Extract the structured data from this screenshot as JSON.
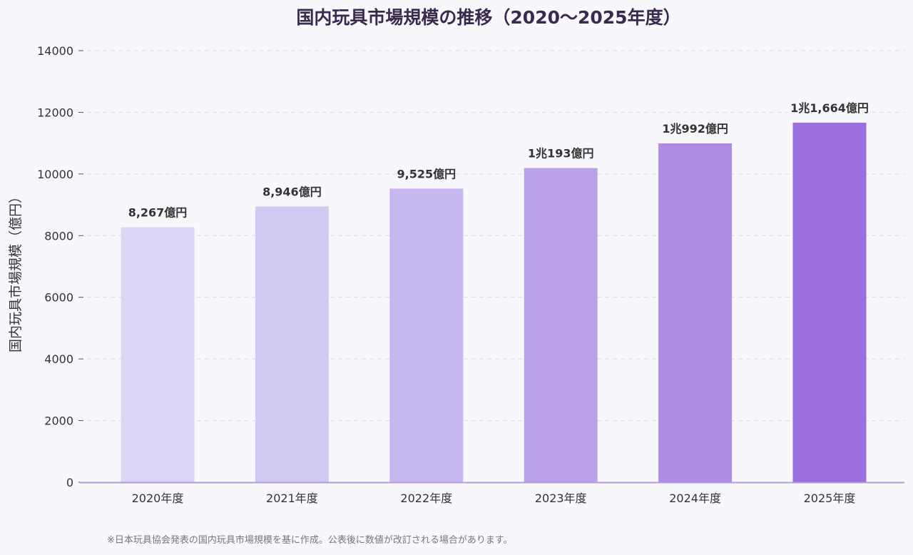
{
  "chart_data": {
    "type": "bar",
    "title": "国内玩具市場規模の推移（2020〜2025年度）",
    "xlabel": "",
    "ylabel": "国内玩具市場規模（億円）",
    "categories": [
      "2020年度",
      "2021年度",
      "2022年度",
      "2023年度",
      "2024年度",
      "2025年度"
    ],
    "values": [
      8267,
      8946,
      9525,
      10193,
      10992,
      11664
    ],
    "data_labels": [
      "8,267億円",
      "8,946億円",
      "9,525億円",
      "1兆193億円",
      "1兆992億円",
      "1兆1,664億円"
    ],
    "ylim": [
      0,
      14000
    ],
    "yticks": [
      0,
      2000,
      4000,
      6000,
      8000,
      10000,
      12000,
      14000
    ],
    "grid": true,
    "colors": [
      "#dcd5f5",
      "#d2c9f3",
      "#c6b8ef",
      "#baa2ea",
      "#ae8ce4",
      "#9b6ede"
    ],
    "axis_color": "#b39be0",
    "footnote": "※日本玩具協会発表の国内玩具市場規模を基に作成。公表後に数値が改訂される場合があります。"
  }
}
